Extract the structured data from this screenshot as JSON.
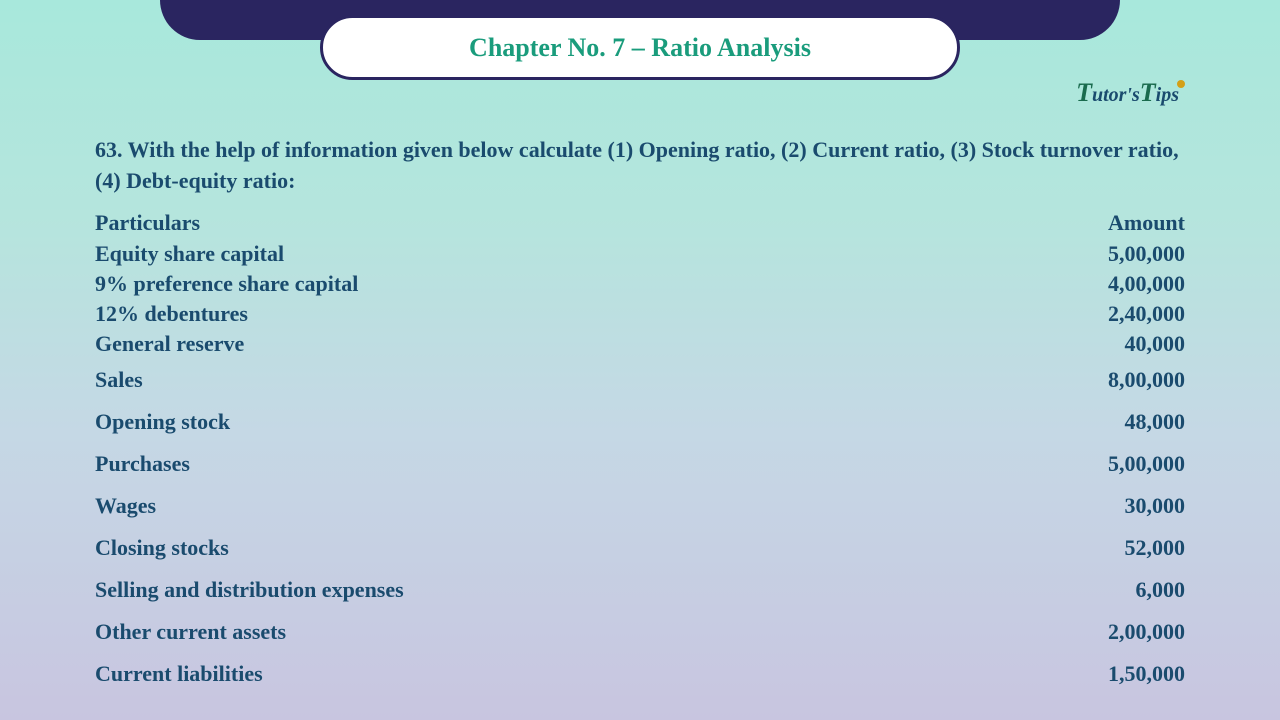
{
  "header": {
    "chapter_title": "Chapter No. 7 – Ratio Analysis",
    "logo_text1": "T",
    "logo_mid1": "utor's",
    "logo_text2": "T",
    "logo_mid2": "ips"
  },
  "question": {
    "text": "63. With the help of information given below calculate (1) Opening ratio, (2) Current ratio, (3) Stock turnover ratio, (4) Debt-equity ratio:"
  },
  "table": {
    "header_particulars": "Particulars",
    "header_amount": "Amount",
    "rows": [
      {
        "label": "Equity share capital",
        "value": "5,00,000",
        "spaced": false
      },
      {
        "label": "9% preference share capital",
        "value": "4,00,000",
        "spaced": false
      },
      {
        "label": "12% debentures",
        "value": "2,40,000",
        "spaced": false
      },
      {
        "label": "General reserve",
        "value": "40,000",
        "spaced": false
      },
      {
        "label": "Sales",
        "value": "8,00,000",
        "spaced": true
      },
      {
        "label": "Opening stock",
        "value": "48,000",
        "spaced": true
      },
      {
        "label": "Purchases",
        "value": "5,00,000",
        "spaced": true
      },
      {
        "label": "Wages",
        "value": "30,000",
        "spaced": true
      },
      {
        "label": "Closing stocks",
        "value": "52,000",
        "spaced": true
      },
      {
        "label": "Selling and distribution expenses",
        "value": "6,000",
        "spaced": true
      },
      {
        "label": "Other current assets",
        "value": "2,00,000",
        "spaced": true
      },
      {
        "label": "Current liabilities",
        "value": "1,50,000",
        "spaced": true
      }
    ]
  },
  "colors": {
    "banner_bg": "#2a2560",
    "pill_bg": "#ffffff",
    "pill_border": "#2a2560",
    "title_color": "#1a9c7c",
    "text_color": "#1a4b6e",
    "bg_top": "#a8e8dc",
    "bg_bottom": "#c8c5e0"
  }
}
